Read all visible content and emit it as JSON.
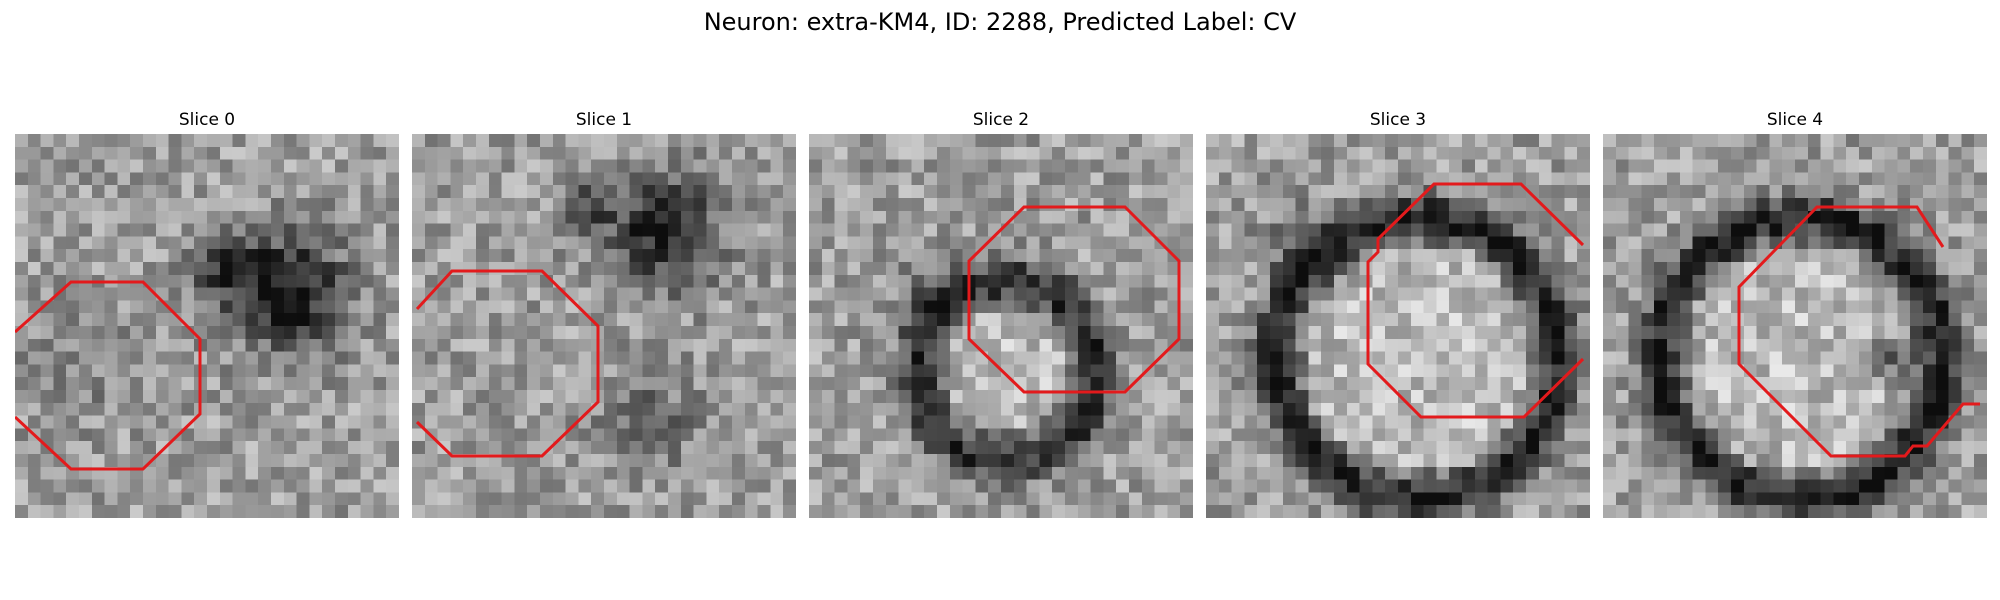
{
  "figure": {
    "title": "Neuron: extra-KM4, ID: 2288, Predicted Label: CV"
  },
  "contour_color": "#e31a1c",
  "slices": [
    {
      "title": "Slice 0"
    },
    {
      "title": "Slice 1"
    },
    {
      "title": "Slice 2"
    },
    {
      "title": "Slice 3"
    },
    {
      "title": "Slice 4"
    }
  ]
}
